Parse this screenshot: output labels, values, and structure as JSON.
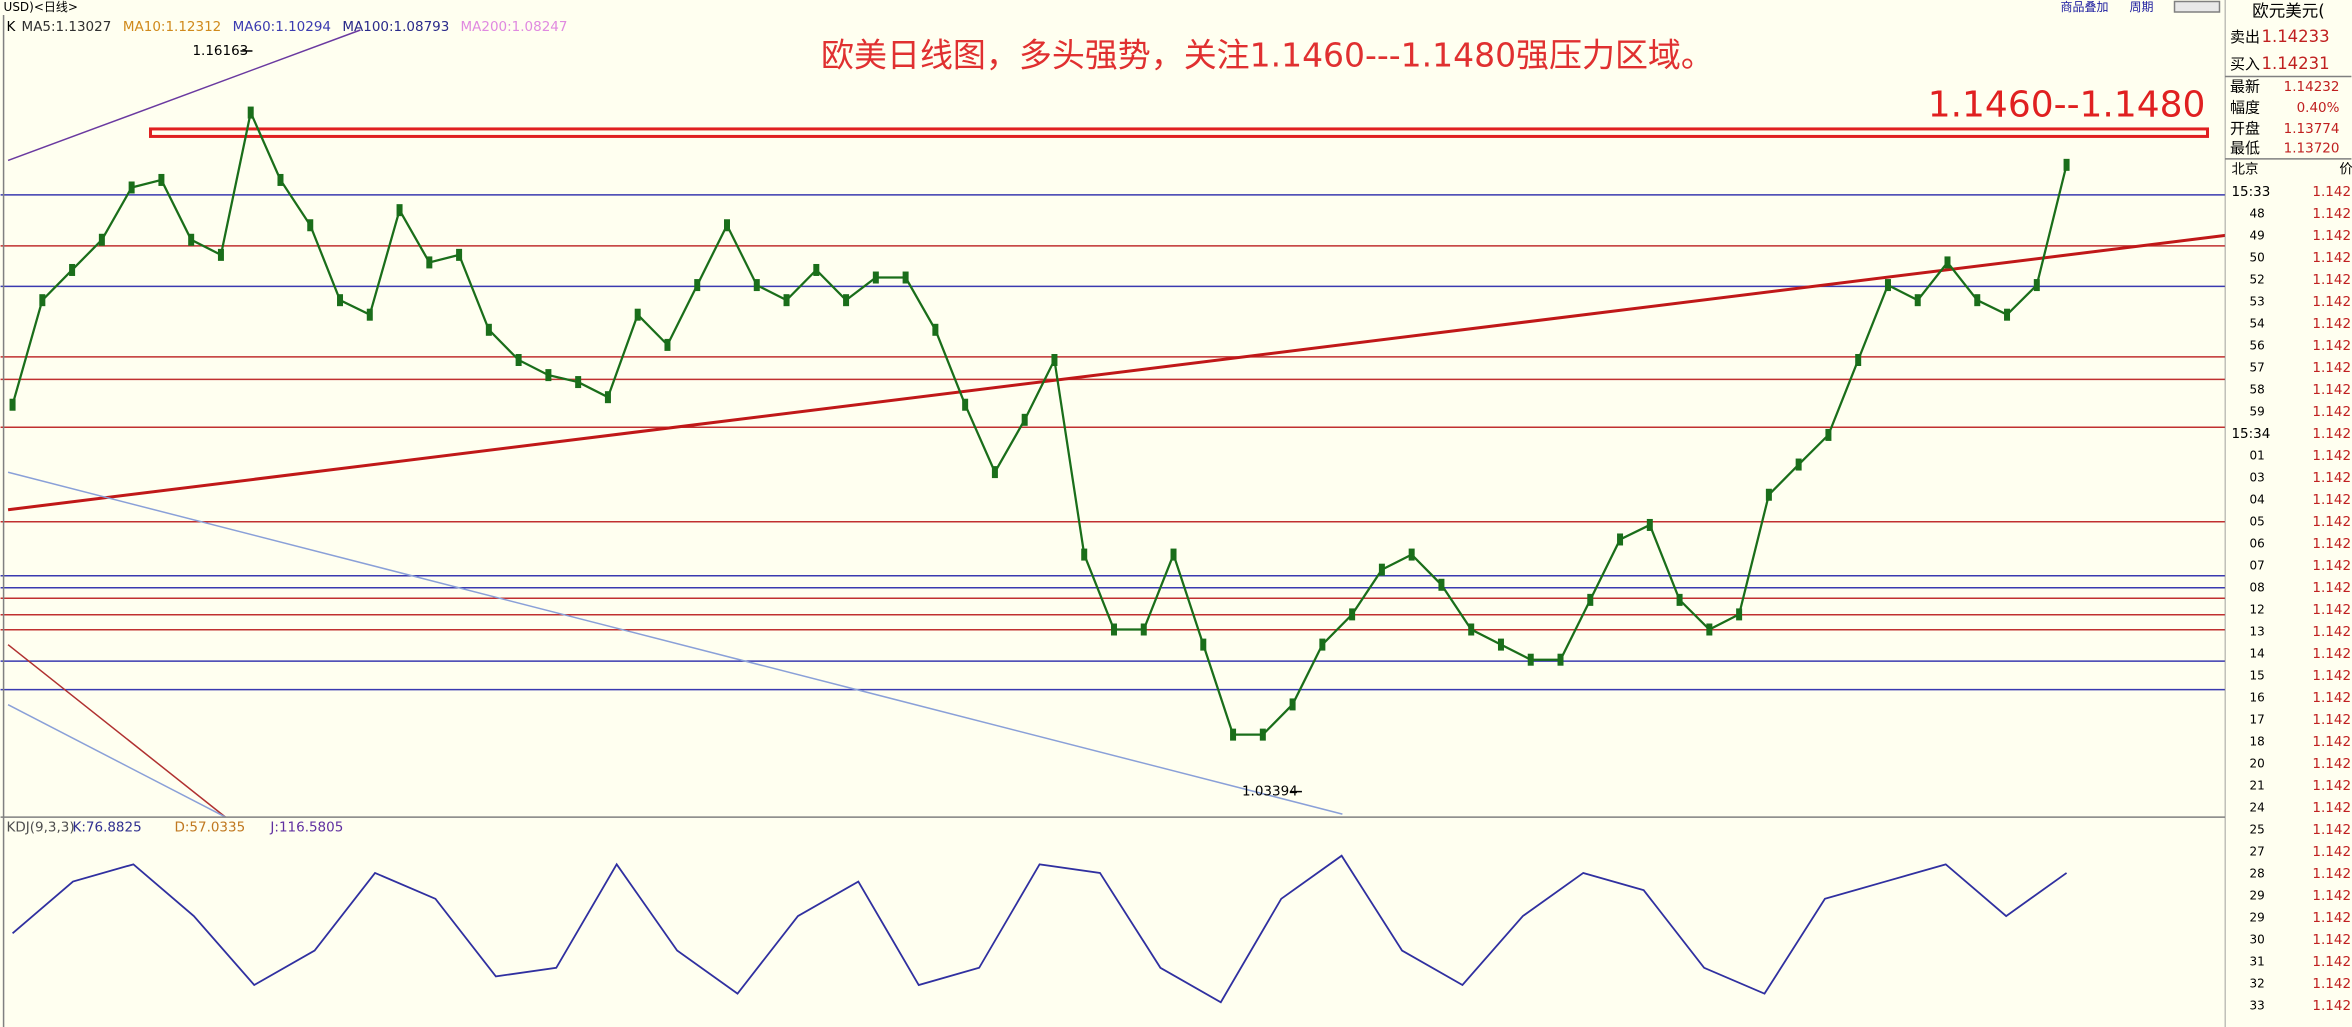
{
  "header": {
    "symbol": "USD)<日线>",
    "k": "K",
    "ma": [
      {
        "text": "MA5:1.13027",
        "color": "#303030"
      },
      {
        "text": "MA10:1.12312",
        "color": "#d08a1c"
      },
      {
        "text": "MA60:1.10294",
        "color": "#3b3bb0"
      },
      {
        "text": "MA100:1.08793",
        "color": "#2a2a8a"
      },
      {
        "text": "MA200:1.08247",
        "color": "#e08ae0"
      }
    ]
  },
  "annotation": {
    "title": "欧美日线图，多头强势，关注1.1460---1.1480强压力区域。",
    "zone": "1.1460--1.1480",
    "high": "1.16163",
    "low": "1.03394"
  },
  "chart_data": {
    "type": "line",
    "ylim": [
      1.0295,
      1.1676
    ],
    "color": "#1a6e1a",
    "values": [
      1.1005,
      1.1185,
      1.1237,
      1.1289,
      1.1379,
      1.1392,
      1.1289,
      1.1263,
      1.1508,
      1.1392,
      1.1314,
      1.1185,
      1.116,
      1.134,
      1.125,
      1.1263,
      1.1134,
      1.1082,
      1.1056,
      1.1044,
      1.1018,
      1.116,
      1.1108,
      1.1211,
      1.1314,
      1.1211,
      1.1185,
      1.1237,
      1.1185,
      1.1224,
      1.1224,
      1.1134,
      1.1005,
      1.0889,
      1.0979,
      1.1082,
      1.0747,
      1.0618,
      1.0618,
      1.0747,
      1.0592,
      1.0437,
      1.0437,
      1.0489,
      1.0592,
      1.0644,
      1.0721,
      1.0747,
      1.0695,
      1.0618,
      1.0592,
      1.0566,
      1.0566,
      1.0669,
      1.0773,
      1.0798,
      1.0669,
      1.0618,
      1.0644,
      1.085,
      1.0902,
      1.0953,
      1.1082,
      1.1211,
      1.1185,
      1.125,
      1.1185,
      1.116,
      1.1211,
      1.1418
    ]
  },
  "kdj": {
    "label": "KDJ(9,3,3)",
    "k": "K:76.8825",
    "d": "D:57.0335",
    "j": "J:116.5805",
    "ylim": [
      0,
      100
    ],
    "color": "#3030a0",
    "values": [
      50,
      80,
      90,
      60,
      20,
      40,
      85,
      70,
      25,
      30,
      90,
      40,
      15,
      60,
      80,
      20,
      30,
      90,
      85,
      30,
      10,
      70,
      95,
      40,
      20,
      60,
      85,
      75,
      30,
      15,
      70,
      80,
      90,
      60,
      85
    ]
  },
  "toolbar": {
    "overlay": "商品叠加",
    "period": "周期"
  },
  "quote": {
    "name": "欧元美元(",
    "rows": [
      {
        "label": "卖出",
        "value": "1.14233"
      },
      {
        "label": "买入",
        "value": "1.14231"
      },
      {
        "label": "最新",
        "value": "1.14232"
      },
      {
        "label": "幅度",
        "value": "0.40%"
      },
      {
        "label": "开盘",
        "value": "1.13774"
      },
      {
        "label": "最低",
        "value": "1.13720"
      }
    ],
    "city": "北京",
    "price_head": "价",
    "ticks": [
      {
        "time": "15:33",
        "price": "1.142"
      },
      {
        "time": "48",
        "price": "1.142"
      },
      {
        "time": "49",
        "price": "1.142"
      },
      {
        "time": "50",
        "price": "1.142"
      },
      {
        "time": "52",
        "price": "1.142"
      },
      {
        "time": "53",
        "price": "1.142"
      },
      {
        "time": "54",
        "price": "1.142"
      },
      {
        "time": "56",
        "price": "1.142"
      },
      {
        "time": "57",
        "price": "1.142"
      },
      {
        "time": "58",
        "price": "1.142"
      },
      {
        "time": "59",
        "price": "1.142"
      },
      {
        "time": "15:34",
        "price": "1.142"
      },
      {
        "time": "01",
        "price": "1.142"
      },
      {
        "time": "03",
        "price": "1.142"
      },
      {
        "time": "04",
        "price": "1.142"
      },
      {
        "time": "05",
        "price": "1.142"
      },
      {
        "time": "06",
        "price": "1.142"
      },
      {
        "time": "07",
        "price": "1.142"
      },
      {
        "time": "08",
        "price": "1.142"
      },
      {
        "time": "12",
        "price": "1.142"
      },
      {
        "time": "13",
        "price": "1.142"
      },
      {
        "time": "14",
        "price": "1.142"
      },
      {
        "time": "15",
        "price": "1.142"
      },
      {
        "time": "16",
        "price": "1.142"
      },
      {
        "time": "17",
        "price": "1.142"
      },
      {
        "time": "18",
        "price": "1.142"
      },
      {
        "time": "20",
        "price": "1.142"
      },
      {
        "time": "21",
        "price": "1.142"
      },
      {
        "time": "24",
        "price": "1.142"
      },
      {
        "time": "25",
        "price": "1.142"
      },
      {
        "time": "27",
        "price": "1.142"
      },
      {
        "time": "28",
        "price": "1.142"
      },
      {
        "time": "29",
        "price": "1.142"
      },
      {
        "time": "29",
        "price": "1.142"
      },
      {
        "time": "30",
        "price": "1.142"
      },
      {
        "time": "31",
        "price": "1.142"
      },
      {
        "time": "32",
        "price": "1.142"
      },
      {
        "time": "33",
        "price": "1.142"
      }
    ]
  }
}
